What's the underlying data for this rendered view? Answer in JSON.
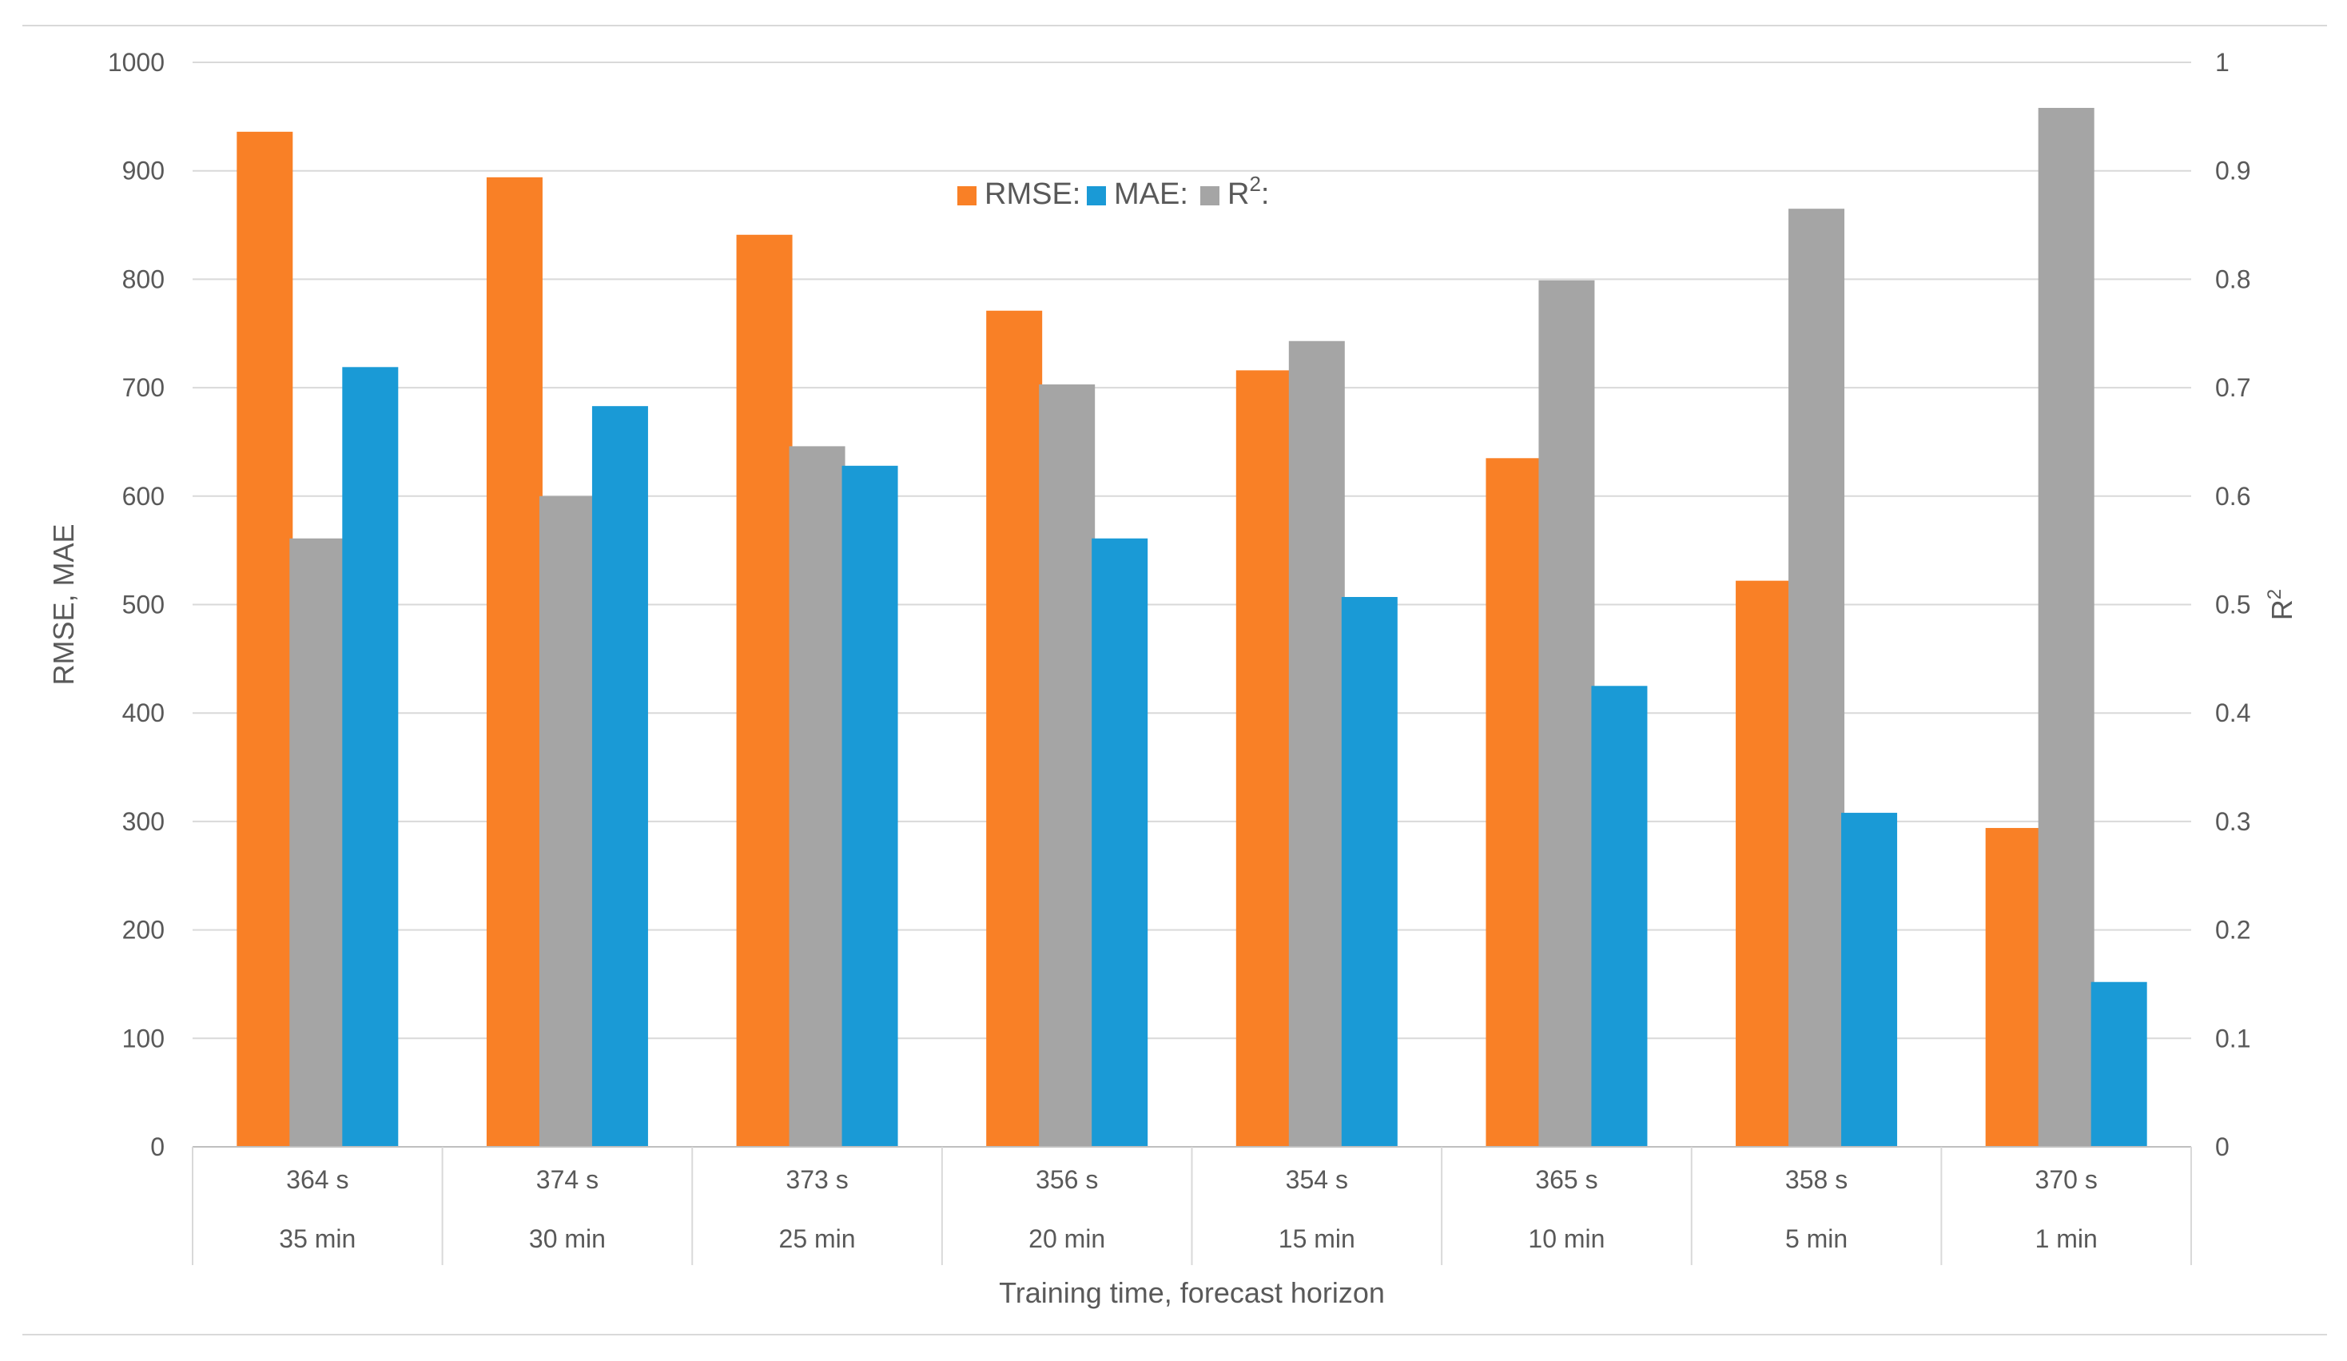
{
  "chart_data": {
    "type": "bar",
    "title": "",
    "xlabel": "Training time, forecast horizon",
    "ylabel": "RMSE, MAE",
    "y2label": "R",
    "y2label_superscript": "2",
    "ylim": [
      0,
      1000
    ],
    "y2lim": [
      0,
      1
    ],
    "yticks": [
      "0",
      "100",
      "200",
      "300",
      "400",
      "500",
      "600",
      "700",
      "800",
      "900",
      "1000"
    ],
    "y2ticks": [
      "0",
      "0.1",
      "0.2",
      "0.3",
      "0.4",
      "0.5",
      "0.6",
      "0.7",
      "0.8",
      "0.9",
      "1"
    ],
    "categories": [
      {
        "time": "364 s",
        "horizon": "35 min"
      },
      {
        "time": "374 s",
        "horizon": "30 min"
      },
      {
        "time": "373 s",
        "horizon": "25 min"
      },
      {
        "time": "356 s",
        "horizon": "20 min"
      },
      {
        "time": "354 s",
        "horizon": "15 min"
      },
      {
        "time": "365 s",
        "horizon": "10 min"
      },
      {
        "time": "358 s",
        "horizon": "5 min"
      },
      {
        "time": "370 s",
        "horizon": "1 min"
      }
    ],
    "series": [
      {
        "name": "RMSE:",
        "color": "#F98026",
        "axis": "left",
        "values": [
          936,
          894,
          841,
          771,
          716,
          635,
          522,
          294
        ]
      },
      {
        "name": "R",
        "superscript": "2",
        "suffix": ":",
        "color": "#A5A5A5",
        "axis": "right",
        "values": [
          0.561,
          0.6,
          0.646,
          0.703,
          0.743,
          0.799,
          0.865,
          0.958
        ]
      },
      {
        "name": "MAE:",
        "color": "#1A9AD6",
        "axis": "left",
        "values": [
          719,
          683,
          628,
          561,
          507,
          425,
          308,
          152
        ]
      }
    ],
    "legend_position": "top-center",
    "grid": true
  }
}
